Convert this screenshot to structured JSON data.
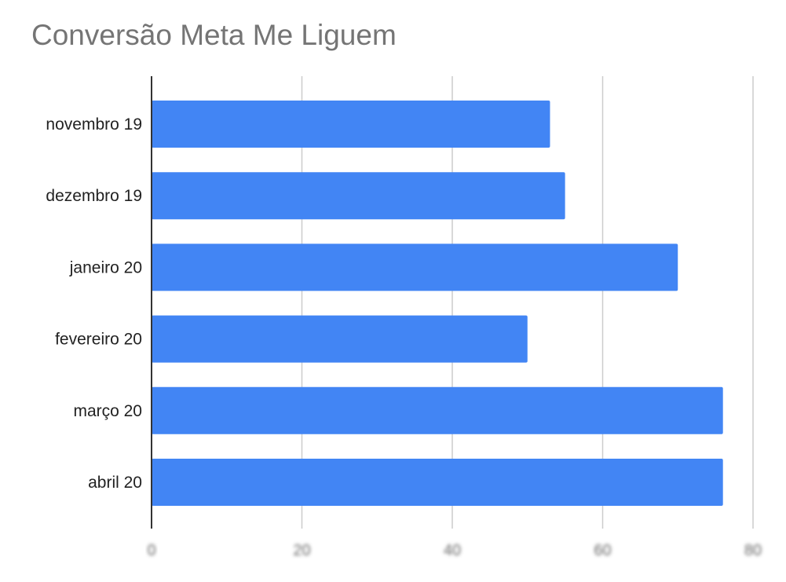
{
  "chart_data": {
    "type": "bar",
    "orientation": "horizontal",
    "title": "Conversão Meta Me Liguem",
    "xlabel": "",
    "ylabel": "",
    "categories": [
      "novembro 19",
      "dezembro 19",
      "janeiro 20",
      "fevereiro 20",
      "março 20",
      "abril 20"
    ],
    "values": [
      53,
      55,
      70,
      50,
      76,
      76
    ],
    "xlim": [
      0,
      80
    ],
    "xticks": [
      "0",
      "20",
      "40",
      "60",
      "80"
    ],
    "grid": true,
    "legend": "none",
    "colors": {
      "bar": "#4285f4",
      "grid": "#cccccc",
      "axis": "#333333"
    }
  }
}
